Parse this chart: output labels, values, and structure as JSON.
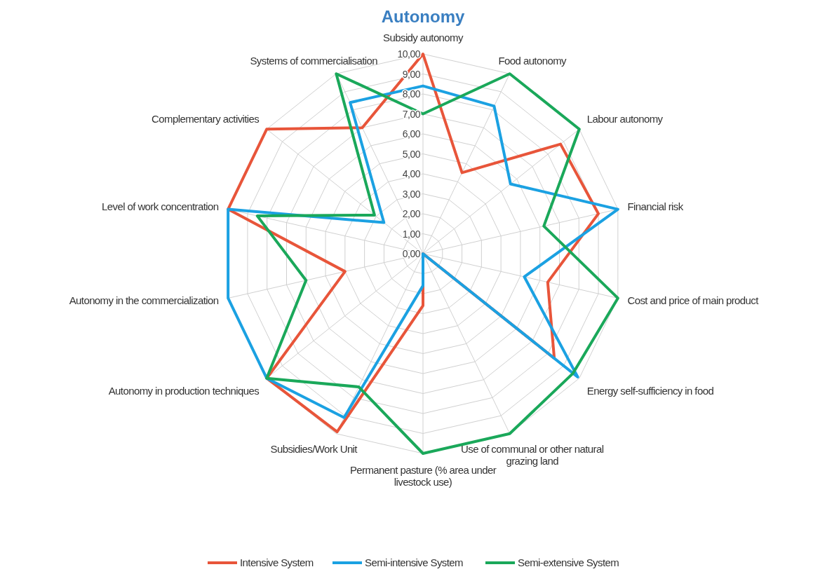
{
  "chart_data": {
    "type": "radar",
    "title": "Autonomy",
    "categories": [
      "Subsidy autonomy",
      "Food autonomy",
      "Labour autonomy",
      "Financial risk",
      "Cost and price of main product",
      "Energy self-sufficiency in food",
      "Use of communal or other natural grazing land",
      "Permanent pasture (% area under livestock use)",
      "Subsidies/Work Unit",
      "Autonomy in production techniques",
      "Autonomy in the commercialization",
      "Level of work concentration",
      "Complementary activities",
      "Systems of commercialisation"
    ],
    "series": [
      {
        "name": "Intensive System",
        "color": "#e8553a",
        "values": [
          10,
          4.5,
          8.8,
          9.0,
          6.4,
          8.4,
          0,
          2.6,
          9.9,
          10,
          4.0,
          10,
          10,
          7.0
        ]
      },
      {
        "name": "Semi-intensive System",
        "color": "#1ba1e2",
        "values": [
          8.4,
          8.2,
          5.6,
          10,
          5.2,
          9.9,
          0,
          1.6,
          9.1,
          10,
          10,
          10,
          2.5,
          8.4
        ]
      },
      {
        "name": "Semi-extensive System",
        "color": "#1aa85a",
        "values": [
          7.0,
          10,
          10,
          6.2,
          10,
          9.6,
          10,
          10,
          7.4,
          10,
          6.0,
          8.5,
          3.1,
          10
        ]
      }
    ],
    "ylim": [
      0,
      10
    ],
    "yticks": [
      {
        "value": 0,
        "label": "0,00"
      },
      {
        "value": 1,
        "label": "1,00"
      },
      {
        "value": 2,
        "label": "2,00"
      },
      {
        "value": 3,
        "label": "3,00"
      },
      {
        "value": 4,
        "label": "4,00"
      },
      {
        "value": 5,
        "label": "5,00"
      },
      {
        "value": 6,
        "label": "6,00"
      },
      {
        "value": 7,
        "label": "7,00"
      },
      {
        "value": 8,
        "label": "8,00"
      },
      {
        "value": 9,
        "label": "9,00"
      },
      {
        "value": 10,
        "label": "10,00"
      }
    ],
    "grid": true,
    "legend": "bottom",
    "line_style": "solid",
    "marker": "none"
  }
}
